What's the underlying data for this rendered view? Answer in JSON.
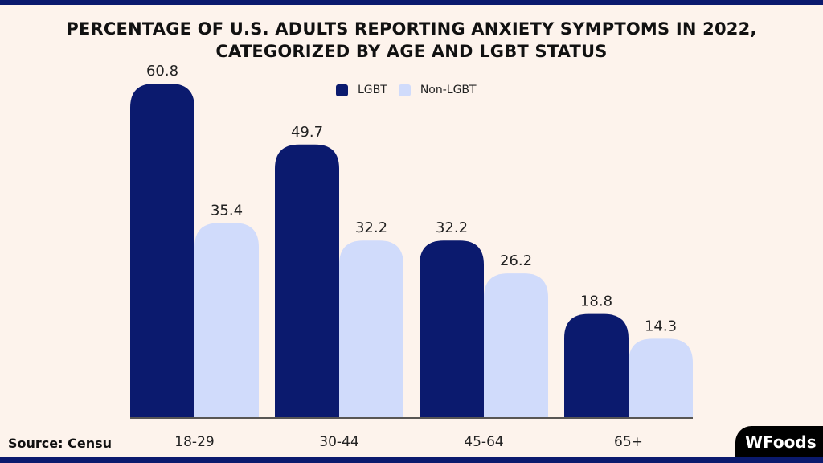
{
  "chart_data": {
    "type": "bar",
    "title": "PERCENTAGE OF U.S. ADULTS REPORTING ANXIETY SYMPTOMS IN 2022, CATEGORIZED BY AGE AND LGBT STATUS",
    "categories": [
      "18-29",
      "30-44",
      "45-64",
      "65+"
    ],
    "series": [
      {
        "name": "LGBT",
        "values": [
          60.8,
          49.7,
          32.2,
          18.8
        ],
        "color": "#0b1a6e"
      },
      {
        "name": "Non-LGBT",
        "values": [
          35.4,
          32.2,
          26.2,
          14.3
        ],
        "color": "#d0dbfb"
      }
    ],
    "xlabel": "",
    "ylabel": "",
    "ylim": [
      0,
      60.8
    ],
    "grid": false,
    "legend": "top-center"
  },
  "source": "Source: Censu",
  "logo": "WFoods",
  "colors": {
    "background": "#fdf3ec",
    "accent": "#0b1a6e"
  }
}
